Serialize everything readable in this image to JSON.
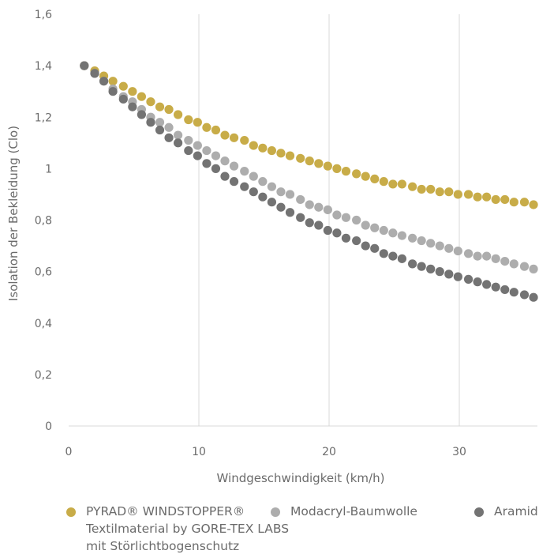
{
  "chart_data": {
    "type": "scatter",
    "xlabel": "Windgeschwindigkeit (km/h)",
    "ylabel": "Isolation der Bekleidung (Clo)",
    "xlim": [
      0,
      36
    ],
    "ylim": [
      0,
      1.6
    ],
    "x_ticks": [
      "0",
      "10",
      "20",
      "30"
    ],
    "y_ticks": [
      "0",
      "0,2",
      "0,4",
      "0,6",
      "0,8",
      "1",
      "1,2",
      "1,4",
      "1,6"
    ],
    "grid": "vertical",
    "legend_position": "bottom",
    "series": [
      {
        "name_lines": [
          "PYRAD® WINDSTOPPER®",
          "Textilmaterial by GORE-TEX LABS",
          "mit Störlichtbogenschutz"
        ],
        "color": "#c8ac48",
        "x": [
          1.2,
          2.0,
          2.7,
          3.4,
          4.2,
          4.9,
          5.6,
          6.3,
          7.0,
          7.7,
          8.4,
          9.2,
          9.9,
          10.6,
          11.3,
          12.0,
          12.7,
          13.5,
          14.2,
          14.9,
          15.6,
          16.3,
          17.0,
          17.8,
          18.5,
          19.2,
          19.9,
          20.6,
          21.3,
          22.1,
          22.8,
          23.5,
          24.2,
          24.9,
          25.6,
          26.4,
          27.1,
          27.8,
          28.5,
          29.2,
          29.9,
          30.7,
          31.4,
          32.1,
          32.8,
          33.5,
          34.2,
          35.0,
          35.7
        ],
        "values": [
          1.4,
          1.38,
          1.36,
          1.34,
          1.32,
          1.3,
          1.28,
          1.26,
          1.24,
          1.23,
          1.21,
          1.19,
          1.18,
          1.16,
          1.15,
          1.13,
          1.12,
          1.11,
          1.09,
          1.08,
          1.07,
          1.06,
          1.05,
          1.04,
          1.03,
          1.02,
          1.01,
          1.0,
          0.99,
          0.98,
          0.97,
          0.96,
          0.95,
          0.94,
          0.94,
          0.93,
          0.92,
          0.92,
          0.91,
          0.91,
          0.9,
          0.9,
          0.89,
          0.89,
          0.88,
          0.88,
          0.87,
          0.87,
          0.86
        ]
      },
      {
        "name": "Modacryl-Baumwolle",
        "color": "#adadad",
        "x": [
          1.2,
          2.0,
          2.7,
          3.4,
          4.2,
          4.9,
          5.6,
          6.3,
          7.0,
          7.7,
          8.4,
          9.2,
          9.9,
          10.6,
          11.3,
          12.0,
          12.7,
          13.5,
          14.2,
          14.9,
          15.6,
          16.3,
          17.0,
          17.8,
          18.5,
          19.2,
          19.9,
          20.6,
          21.3,
          22.1,
          22.8,
          23.5,
          24.2,
          24.9,
          25.6,
          26.4,
          27.1,
          27.8,
          28.5,
          29.2,
          29.9,
          30.7,
          31.4,
          32.1,
          32.8,
          33.5,
          34.2,
          35.0,
          35.7
        ],
        "values": [
          1.4,
          1.37,
          1.34,
          1.31,
          1.28,
          1.26,
          1.23,
          1.2,
          1.18,
          1.16,
          1.13,
          1.11,
          1.09,
          1.07,
          1.05,
          1.03,
          1.01,
          0.99,
          0.97,
          0.95,
          0.93,
          0.91,
          0.9,
          0.88,
          0.86,
          0.85,
          0.84,
          0.82,
          0.81,
          0.8,
          0.78,
          0.77,
          0.76,
          0.75,
          0.74,
          0.73,
          0.72,
          0.71,
          0.7,
          0.69,
          0.68,
          0.67,
          0.66,
          0.66,
          0.65,
          0.64,
          0.63,
          0.62,
          0.61
        ]
      },
      {
        "name": "Aramid",
        "color": "#737373",
        "x": [
          1.2,
          2.0,
          2.7,
          3.4,
          4.2,
          4.9,
          5.6,
          6.3,
          7.0,
          7.7,
          8.4,
          9.2,
          9.9,
          10.6,
          11.3,
          12.0,
          12.7,
          13.5,
          14.2,
          14.9,
          15.6,
          16.3,
          17.0,
          17.8,
          18.5,
          19.2,
          19.9,
          20.6,
          21.3,
          22.1,
          22.8,
          23.5,
          24.2,
          24.9,
          25.6,
          26.4,
          27.1,
          27.8,
          28.5,
          29.2,
          29.9,
          30.7,
          31.4,
          32.1,
          32.8,
          33.5,
          34.2,
          35.0,
          35.7
        ],
        "values": [
          1.4,
          1.37,
          1.34,
          1.3,
          1.27,
          1.24,
          1.21,
          1.18,
          1.15,
          1.12,
          1.1,
          1.07,
          1.05,
          1.02,
          1.0,
          0.97,
          0.95,
          0.93,
          0.91,
          0.89,
          0.87,
          0.85,
          0.83,
          0.81,
          0.79,
          0.78,
          0.76,
          0.75,
          0.73,
          0.72,
          0.7,
          0.69,
          0.67,
          0.66,
          0.65,
          0.63,
          0.62,
          0.61,
          0.6,
          0.59,
          0.58,
          0.57,
          0.56,
          0.55,
          0.54,
          0.53,
          0.52,
          0.51,
          0.5
        ]
      }
    ]
  }
}
